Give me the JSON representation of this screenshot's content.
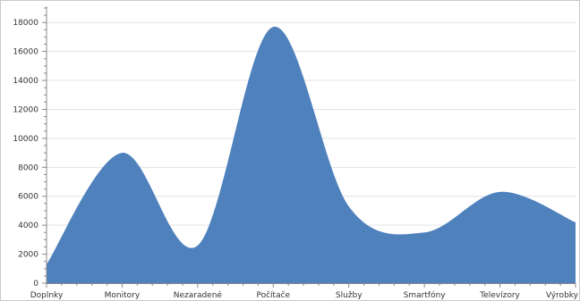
{
  "chart_data": {
    "type": "area",
    "categories": [
      "Doplnky",
      "Monitory",
      "Nezaradené",
      "Počítače",
      "Služby",
      "Smartfóny",
      "Televízory",
      "Výrobky"
    ],
    "values": [
      1300,
      9000,
      2600,
      17700,
      5300,
      3500,
      6300,
      4200
    ],
    "ylim": [
      0,
      19000
    ],
    "yticks": [
      0,
      2000,
      4000,
      6000,
      8000,
      10000,
      12000,
      14000,
      16000,
      18000
    ],
    "grid": true,
    "smooth": true,
    "fill_color": "#4f81bd",
    "legend": "none"
  }
}
